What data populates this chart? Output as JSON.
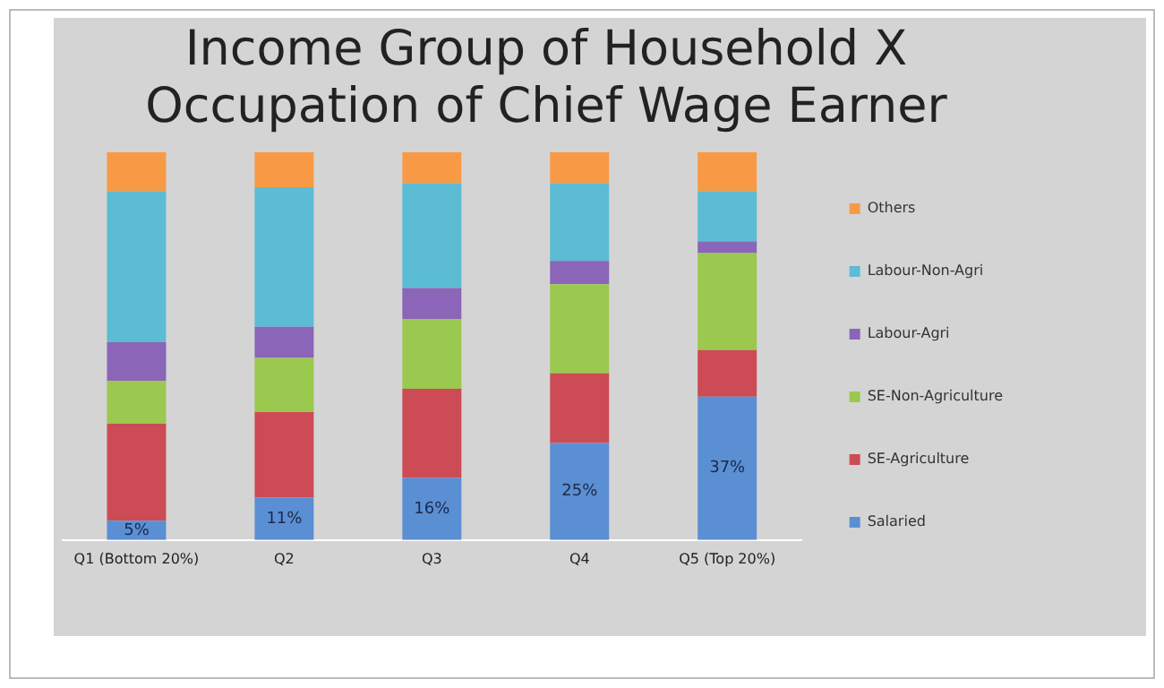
{
  "chart_data": {
    "type": "bar",
    "title": "Income Group of Household X Occupation of Chief Wage Earner",
    "stacked": true,
    "legend": "right",
    "grid": false,
    "tick_labels": "x",
    "ylim": [
      0,
      100
    ],
    "categories": [
      "Q1 (Bottom 20%)",
      "Q2",
      "Q3",
      "Q4",
      "Q5 (Top 20%)"
    ],
    "series": [
      {
        "name": "Salaried",
        "color": "#5b8fd4",
        "values": [
          5,
          11,
          16,
          25,
          37
        ],
        "value_labels": [
          "5%",
          "11%",
          "16%",
          "25%",
          "37%"
        ]
      },
      {
        "name": "SE-Agriculture",
        "color": "#cc4b55",
        "values": [
          25,
          22,
          23,
          18,
          12
        ]
      },
      {
        "name": "SE-Non-Agriculture",
        "color": "#9bc84e",
        "values": [
          11,
          14,
          18,
          23,
          25
        ]
      },
      {
        "name": "Labour-Agri",
        "color": "#8a65b8",
        "values": [
          10,
          8,
          8,
          6,
          3
        ]
      },
      {
        "name": "Labour-Non-Agri",
        "color": "#5bbcd4",
        "values": [
          39,
          36,
          27,
          20,
          13
        ]
      },
      {
        "name": "Others",
        "color": "#f89a45",
        "values": [
          10,
          9,
          8,
          8,
          10
        ]
      }
    ]
  }
}
